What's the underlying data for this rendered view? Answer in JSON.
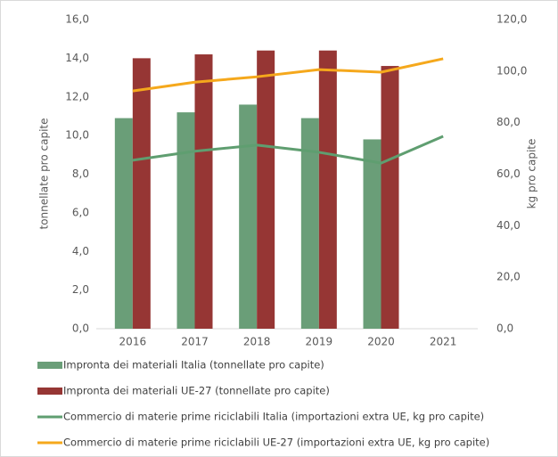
{
  "chart_data": {
    "type": "bar",
    "categories": [
      "2016",
      "2017",
      "2018",
      "2019",
      "2020",
      "2021"
    ],
    "series": [
      {
        "name": "Impronta dei materiali Italia (tonnellate pro capite)",
        "type": "bar",
        "color": "#6a9e78",
        "values": [
          10.9,
          11.2,
          11.6,
          10.9,
          9.8,
          null
        ]
      },
      {
        "name": "Impronta dei materiali UE-27 (tonnellate pro capite)",
        "type": "bar",
        "color": "#963634",
        "values": [
          14.0,
          14.2,
          14.4,
          14.4,
          13.6,
          null
        ]
      },
      {
        "name": "Commercio di materie prime riciclabili Italia (importazioni extra UE, kg pro capite)",
        "type": "line",
        "axis": "y2",
        "color": "#5f9e70",
        "values": [
          65.4,
          68.9,
          71.3,
          68.5,
          64.3,
          74.7
        ]
      },
      {
        "name": "Commercio di materie prime riciclabili UE-27 (importazioni extra UE, kg pro capite)",
        "type": "line",
        "axis": "y2",
        "color": "#f5a81c",
        "values": [
          92.3,
          95.7,
          97.8,
          100.6,
          99.6,
          104.8
        ]
      }
    ],
    "ylabel": "tonnellate pro capite",
    "y2label": "kg pro capite",
    "ylim": [
      0,
      16
    ],
    "yticks": [
      {
        "value": 0,
        "label": "0,0"
      },
      {
        "value": 2,
        "label": "2,0"
      },
      {
        "value": 4,
        "label": "4,0"
      },
      {
        "value": 6,
        "label": "6,0"
      },
      {
        "value": 8,
        "label": "8,0"
      },
      {
        "value": 10,
        "label": "10,0"
      },
      {
        "value": 12,
        "label": "12,0"
      },
      {
        "value": 14,
        "label": "14,0"
      },
      {
        "value": 16,
        "label": "16,0"
      }
    ],
    "y2lim": [
      0,
      120
    ],
    "y2ticks": [
      {
        "value": 0,
        "label": "0,0"
      },
      {
        "value": 20,
        "label": "20,0"
      },
      {
        "value": 40,
        "label": "40,0"
      },
      {
        "value": 60,
        "label": "60,0"
      },
      {
        "value": 80,
        "label": "80,0"
      },
      {
        "value": 100,
        "label": "100,0"
      },
      {
        "value": 120,
        "label": "120,0"
      }
    ],
    "grid": false,
    "legend": "bottom"
  }
}
